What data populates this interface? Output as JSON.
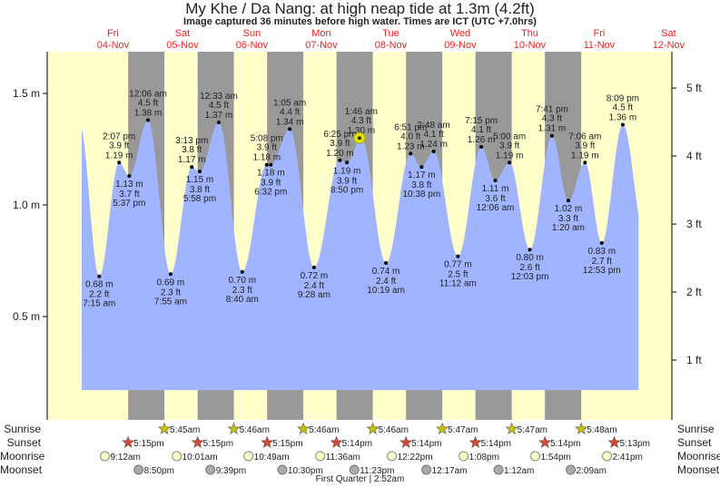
{
  "chart_data": {
    "type": "area",
    "title": "My Khe / Da Nang: at high  neap tide at 1.3m (4.2ft)",
    "subtitle": "Image captured 36 minutes before high water. Times are ICT (UTC +7.0hrs)",
    "time_unit": "hours since 04-Nov 00:00",
    "xlim": [
      1.2,
      193.6
    ],
    "ylim_m": [
      0,
      1.7
    ],
    "yticks_m": [
      {
        "v": 0.5,
        "label": "0.5 m"
      },
      {
        "v": 1.0,
        "label": "1.0 m"
      },
      {
        "v": 1.5,
        "label": "1.5 m"
      }
    ],
    "yticks_ft": [
      {
        "v": 1,
        "label": "1 ft"
      },
      {
        "v": 2,
        "label": "2 ft"
      },
      {
        "v": 3,
        "label": "3 ft"
      },
      {
        "v": 4,
        "label": "4 ft"
      },
      {
        "v": 5,
        "label": "5 ft"
      }
    ],
    "days": [
      {
        "dow": "Fri",
        "date": "04-Nov"
      },
      {
        "dow": "Sat",
        "date": "05-Nov"
      },
      {
        "dow": "Sun",
        "date": "06-Nov"
      },
      {
        "dow": "Mon",
        "date": "07-Nov"
      },
      {
        "dow": "Tue",
        "date": "08-Nov"
      },
      {
        "dow": "Wed",
        "date": "09-Nov"
      },
      {
        "dow": "Thu",
        "date": "10-Nov"
      },
      {
        "dow": "Fri",
        "date": "11-Nov"
      },
      {
        "dow": "Sat",
        "date": "12-Nov"
      }
    ],
    "extremes": [
      {
        "t": 7.25,
        "m": "0.68 m",
        "v": 0.68,
        "ft": "2.2 ft",
        "time": "7:15 am",
        "type": "low"
      },
      {
        "t": 14.12,
        "m": "1.19 m",
        "v": 1.19,
        "ft": "3.9 ft",
        "time": "2:07 pm",
        "type": "high"
      },
      {
        "t": 17.62,
        "m": "1.13 m",
        "v": 1.13,
        "ft": "3.7 ft",
        "time": "5:37 pm",
        "type": "low"
      },
      {
        "t": 24.1,
        "m": "1.38 m",
        "v": 1.38,
        "ft": "4.5 ft",
        "time": "12:06 am",
        "type": "high"
      },
      {
        "t": 31.92,
        "m": "0.69 m",
        "v": 0.69,
        "ft": "2.3 ft",
        "time": "7:55 am",
        "type": "low"
      },
      {
        "t": 39.22,
        "m": "1.17 m",
        "v": 1.17,
        "ft": "3.8 ft",
        "time": "3:13 pm",
        "type": "high"
      },
      {
        "t": 41.97,
        "m": "1.15 m",
        "v": 1.15,
        "ft": "3.8 ft",
        "time": "5:58 pm",
        "type": "low"
      },
      {
        "t": 48.55,
        "m": "1.37 m",
        "v": 1.37,
        "ft": "4.5 ft",
        "time": "12:33 am",
        "type": "high"
      },
      {
        "t": 56.67,
        "m": "0.70 m",
        "v": 0.7,
        "ft": "2.3 ft",
        "time": "8:40 am",
        "type": "low"
      },
      {
        "t": 65.13,
        "m": "1.18 m",
        "v": 1.18,
        "ft": "3.9 ft",
        "time": "5:08 pm",
        "type": "high"
      },
      {
        "t": 66.53,
        "m": "1.18 m",
        "v": 1.18,
        "ft": "3.9 ft",
        "time": "6:32 pm",
        "type": "low"
      },
      {
        "t": 73.08,
        "m": "1.34 m",
        "v": 1.34,
        "ft": "4.4 ft",
        "time": "1:05 am",
        "type": "high"
      },
      {
        "t": 81.47,
        "m": "0.72 m",
        "v": 0.72,
        "ft": "2.4 ft",
        "time": "9:28 am",
        "type": "low"
      },
      {
        "t": 90.42,
        "m": "1.20 m",
        "v": 1.2,
        "ft": "3.9 ft",
        "time": "6:25 pm",
        "type": "high"
      },
      {
        "t": 92.83,
        "m": "1.19 m",
        "v": 1.19,
        "ft": "3.9 ft",
        "time": "8:50 pm",
        "type": "low"
      },
      {
        "t": 97.77,
        "m": "1.30 m",
        "v": 1.3,
        "ft": "4.3 ft",
        "time": "1:46 am",
        "type": "high"
      },
      {
        "t": 106.32,
        "m": "0.74 m",
        "v": 0.74,
        "ft": "2.4 ft",
        "time": "10:19 am",
        "type": "low"
      },
      {
        "t": 114.85,
        "m": "1.23 m",
        "v": 1.23,
        "ft": "4.0 ft",
        "time": "6:51 pm",
        "type": "high"
      },
      {
        "t": 118.63,
        "m": "1.17 m",
        "v": 1.17,
        "ft": "3.8 ft",
        "time": "10:38 pm",
        "type": "low"
      },
      {
        "t": 122.8,
        "m": "1.24 m",
        "v": 1.24,
        "ft": "4.1 ft",
        "time": "2:48 am",
        "type": "high"
      },
      {
        "t": 131.2,
        "m": "0.77 m",
        "v": 0.77,
        "ft": "2.5 ft",
        "time": "11:12 am",
        "type": "low"
      },
      {
        "t": 139.25,
        "m": "1.26 m",
        "v": 1.26,
        "ft": "4.1 ft",
        "time": "7:15 pm",
        "type": "high"
      },
      {
        "t": 144.1,
        "m": "1.11 m",
        "v": 1.11,
        "ft": "3.6 ft",
        "time": "12:06 am",
        "type": "low"
      },
      {
        "t": 149.0,
        "m": "1.19 m",
        "v": 1.19,
        "ft": "3.9 ft",
        "time": "5:00 am",
        "type": "high"
      },
      {
        "t": 156.05,
        "m": "0.80 m",
        "v": 0.8,
        "ft": "2.6 ft",
        "time": "12:03 pm",
        "type": "low"
      },
      {
        "t": 163.68,
        "m": "1.31 m",
        "v": 1.31,
        "ft": "4.3 ft",
        "time": "7:41 pm",
        "type": "high"
      },
      {
        "t": 169.33,
        "m": "1.02 m",
        "v": 1.02,
        "ft": "3.3 ft",
        "time": "1:20 am",
        "type": "low"
      },
      {
        "t": 175.1,
        "m": "1.19 m",
        "v": 1.19,
        "ft": "3.9 ft",
        "time": "7:06 am",
        "type": "high"
      },
      {
        "t": 180.88,
        "m": "0.83 m",
        "v": 0.83,
        "ft": "2.7 ft",
        "time": "12:53 pm",
        "type": "low"
      },
      {
        "t": 188.15,
        "m": "1.36 m",
        "v": 1.36,
        "ft": "4.5 ft",
        "time": "8:09 pm",
        "type": "high"
      }
    ],
    "current": {
      "t": 97.17,
      "v": 1.3
    },
    "astro": {
      "rows": {
        "sunrise": "Sunrise",
        "sunset": "Sunset",
        "moonrise": "Moonrise",
        "moonset": "Moonset"
      },
      "sunrise": [
        {
          "day": 1,
          "time": "5:45am"
        },
        {
          "day": 2,
          "time": "5:46am"
        },
        {
          "day": 3,
          "time": "5:46am"
        },
        {
          "day": 4,
          "time": "5:46am"
        },
        {
          "day": 5,
          "time": "5:47am"
        },
        {
          "day": 6,
          "time": "5:47am"
        },
        {
          "day": 7,
          "time": "5:48am"
        }
      ],
      "sunset": [
        {
          "day": 0,
          "time": "5:15pm"
        },
        {
          "day": 1,
          "time": "5:15pm"
        },
        {
          "day": 2,
          "time": "5:15pm"
        },
        {
          "day": 3,
          "time": "5:14pm"
        },
        {
          "day": 4,
          "time": "5:14pm"
        },
        {
          "day": 5,
          "time": "5:14pm"
        },
        {
          "day": 6,
          "time": "5:14pm"
        },
        {
          "day": 7,
          "time": "5:13pm"
        }
      ],
      "moonrise": [
        {
          "day": 0,
          "time": "9:12am"
        },
        {
          "day": 1,
          "time": "10:01am"
        },
        {
          "day": 2,
          "time": "10:49am"
        },
        {
          "day": 3,
          "time": "11:36am"
        },
        {
          "day": 4,
          "time": "12:22pm"
        },
        {
          "day": 5,
          "time": "1:08pm"
        },
        {
          "day": 6,
          "time": "1:54pm"
        },
        {
          "day": 7,
          "time": "2:41pm"
        }
      ],
      "moonset": [
        {
          "day": 0,
          "time": "8:50pm"
        },
        {
          "day": 1,
          "time": "9:39pm"
        },
        {
          "day": 2,
          "time": "10:30pm"
        },
        {
          "day": 3,
          "time": "11:23pm"
        },
        {
          "day": 5,
          "time": "12:17am"
        },
        {
          "day": 6,
          "time": "1:12am"
        },
        {
          "day": 7,
          "time": "2:09am"
        }
      ],
      "moon_phase": "First Quarter | 2:52am"
    },
    "colors": {
      "day": "#ffffcc",
      "night": "#999999",
      "water": "#a0b4ff",
      "date": "#ee2222",
      "sunrise": "#c8c000",
      "sunset": "#d84830",
      "moonrise": "#ffffc8",
      "moonset": "#aaaaaa",
      "current": "#e0e000"
    }
  }
}
